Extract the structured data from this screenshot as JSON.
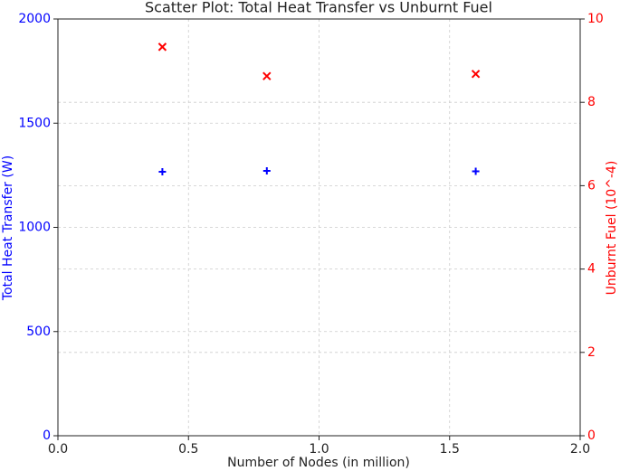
{
  "chart_data": {
    "type": "scatter",
    "title": "Scatter Plot: Total Heat Transfer vs Unburnt Fuel",
    "xlabel": "Number of Nodes (in million)",
    "ylabel": "Total Heat Transfer (W)",
    "y2label": "Unburnt Fuel (10^-4)",
    "x": [
      0.4,
      0.8,
      1.6
    ],
    "series": [
      {
        "color": "#0000ff",
        "marker": "+",
        "values": [
          1267,
          1271,
          1269
        ]
      },
      {
        "color": "#ff0000",
        "marker": "x",
        "axis": "y2",
        "values": [
          9.33,
          8.63,
          8.68
        ]
      }
    ],
    "xlim": [
      0,
      2
    ],
    "xticks": [
      {
        "value": 0,
        "label": "0.0"
      },
      0.5,
      {
        "value": 1,
        "label": "1.0"
      },
      1.5,
      {
        "value": 2,
        "label": "2.0"
      }
    ],
    "ylim": [
      0,
      2000
    ],
    "yticks": [
      0,
      500,
      1000,
      1500,
      2000
    ],
    "y2lim": [
      0,
      10
    ],
    "y2ticks": [
      0,
      2,
      4,
      6,
      8,
      10
    ],
    "grid": true
  }
}
